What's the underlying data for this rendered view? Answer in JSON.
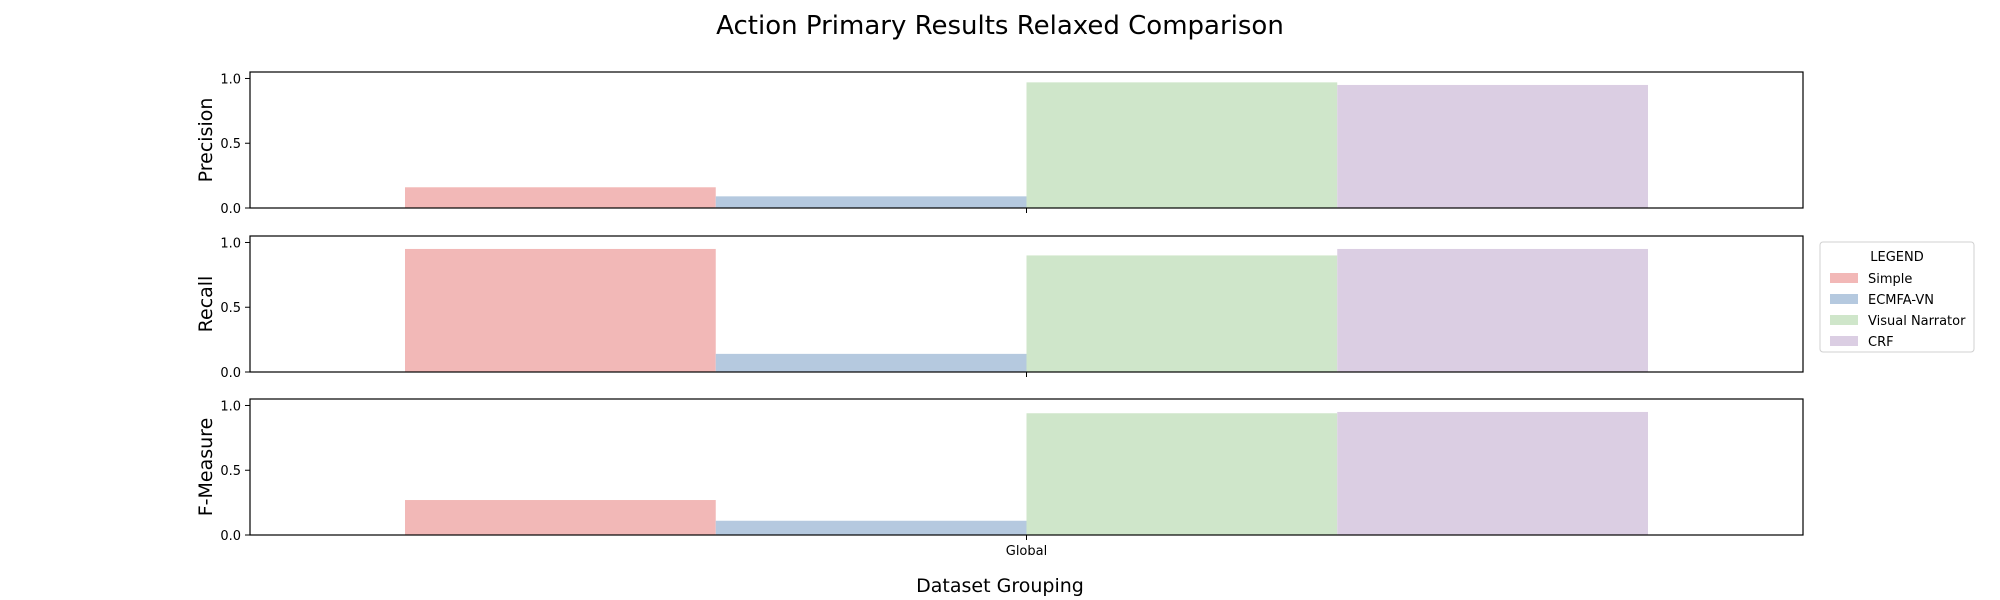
{
  "chart_data": {
    "type": "bar",
    "title": "Action Primary Results Relaxed Comparison",
    "xlabel": "Dataset Grouping",
    "categories": [
      "Global"
    ],
    "ylim": [
      0,
      1.05
    ],
    "yticks": [
      "0.0",
      "0.5",
      "1.0"
    ],
    "legend": {
      "title": "LEGEND",
      "placement": "right",
      "entries": [
        "Simple",
        "ECMFA-VN",
        "Visual Narrator",
        "CRF"
      ]
    },
    "series_colors": {
      "Simple": "#f2b8b7",
      "ECMFA-VN": "#b5c9df",
      "Visual Narrator": "#cfe6ca",
      "CRF": "#dbcee3"
    },
    "panels": [
      {
        "ylabel": "Precision",
        "series": [
          {
            "name": "Simple",
            "values": [
              0.16
            ]
          },
          {
            "name": "ECMFA-VN",
            "values": [
              0.09
            ]
          },
          {
            "name": "Visual Narrator",
            "values": [
              0.97
            ]
          },
          {
            "name": "CRF",
            "values": [
              0.95
            ]
          }
        ]
      },
      {
        "ylabel": "Recall",
        "series": [
          {
            "name": "Simple",
            "values": [
              0.95
            ]
          },
          {
            "name": "ECMFA-VN",
            "values": [
              0.14
            ]
          },
          {
            "name": "Visual Narrator",
            "values": [
              0.9
            ]
          },
          {
            "name": "CRF",
            "values": [
              0.95
            ]
          }
        ]
      },
      {
        "ylabel": "F-Measure",
        "series": [
          {
            "name": "Simple",
            "values": [
              0.27
            ]
          },
          {
            "name": "ECMFA-VN",
            "values": [
              0.11
            ]
          },
          {
            "name": "Visual Narrator",
            "values": [
              0.94
            ]
          },
          {
            "name": "CRF",
            "values": [
              0.95
            ]
          }
        ]
      }
    ]
  }
}
